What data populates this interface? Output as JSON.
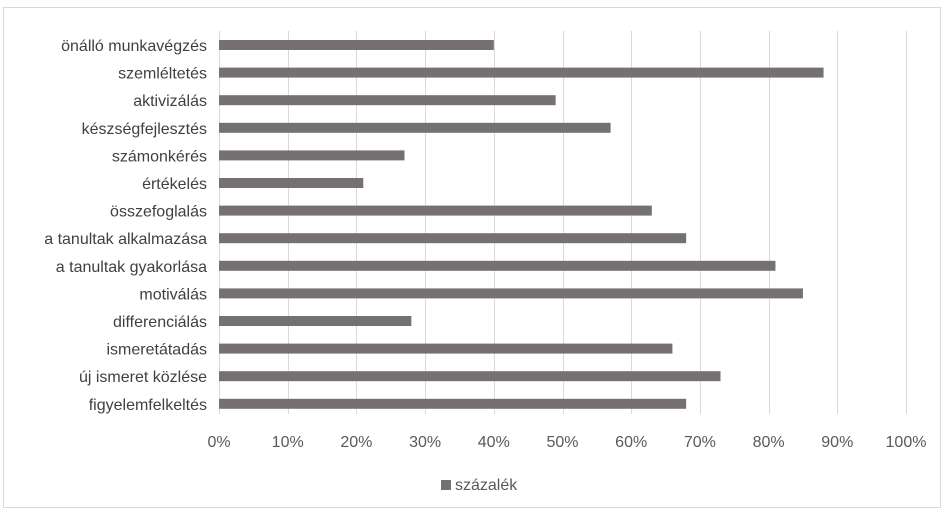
{
  "chart_data": {
    "type": "bar",
    "orientation": "horizontal",
    "categories": [
      "önálló munkavégzés",
      "szemléltetés",
      "aktivizálás",
      "készségfejlesztés",
      "számonkérés",
      "értékelés",
      "összefoglalás",
      "a tanultak alkalmazása",
      "a tanultak gyakorlása",
      "motiválás",
      "differenciálás",
      "ismeretátadás",
      "új ismeret közlése",
      "figyelemfelkeltés"
    ],
    "series": [
      {
        "name": "százalék",
        "values": [
          40,
          88,
          49,
          57,
          27,
          21,
          63,
          68,
          81,
          85,
          28,
          66,
          73,
          68
        ]
      }
    ],
    "xlim": [
      0,
      100
    ],
    "x_ticks": [
      "0%",
      "10%",
      "20%",
      "30%",
      "40%",
      "50%",
      "60%",
      "70%",
      "80%",
      "90%",
      "100%"
    ],
    "grid": "vertical",
    "legend": "bottom",
    "bar_color": "#767171"
  }
}
